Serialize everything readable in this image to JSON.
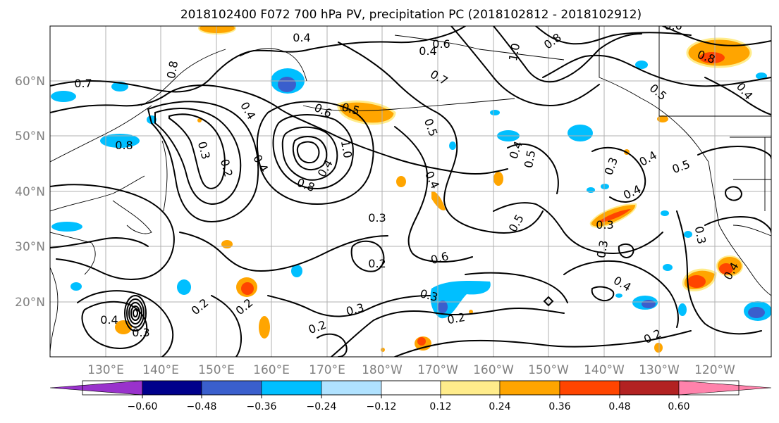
{
  "title": "2018102400 F072 700 hPa PV, precipitation PC (2018102812 - 2018102912)",
  "lat_labels": [
    "60°N",
    "50°N",
    "40°N",
    "30°N",
    "20°N"
  ],
  "lon_labels": [
    "130°E",
    "140°E",
    "150°E",
    "160°E",
    "170°E",
    "180°W",
    "170°W",
    "160°W",
    "150°W",
    "140°W",
    "130°W",
    "120°W"
  ],
  "contour_labels": [
    "0.7",
    "0.8",
    "0.4",
    "0.6",
    "0.4",
    "0.7",
    "1.0",
    "0.8",
    "0.8",
    "0.4",
    "0.5",
    "0.6",
    "0.6",
    "0.5",
    "0.4",
    "0.3",
    "0.2",
    "0.4",
    "1.0",
    "0.4",
    "0.8",
    "0.8",
    "0.5",
    "0.4",
    "0.5",
    "0.3",
    "0.4",
    "0.5",
    "0.4",
    "0.3",
    "0.4",
    "0.5",
    "0.3",
    "0.2",
    "0.6",
    "0.3",
    "0.3",
    "0.3",
    "0.4",
    "0.2",
    "0.2",
    "0.3",
    "0.2",
    "0.2",
    "0.4",
    "0.3",
    "0.4",
    "0.2"
  ],
  "colorbar": {
    "ticks": [
      "−0.60",
      "−0.48",
      "−0.36",
      "−0.24",
      "−0.12",
      "0.12",
      "0.24",
      "0.36",
      "0.48",
      "0.60"
    ],
    "colors": [
      "#9932cc",
      "#00008b",
      "#3a5fcd",
      "#00bfff",
      "#b0e2ff",
      "#ffffff",
      "#ffec8b",
      "#ffa500",
      "#ff4500",
      "#b22222",
      "#ff82ab"
    ]
  }
}
